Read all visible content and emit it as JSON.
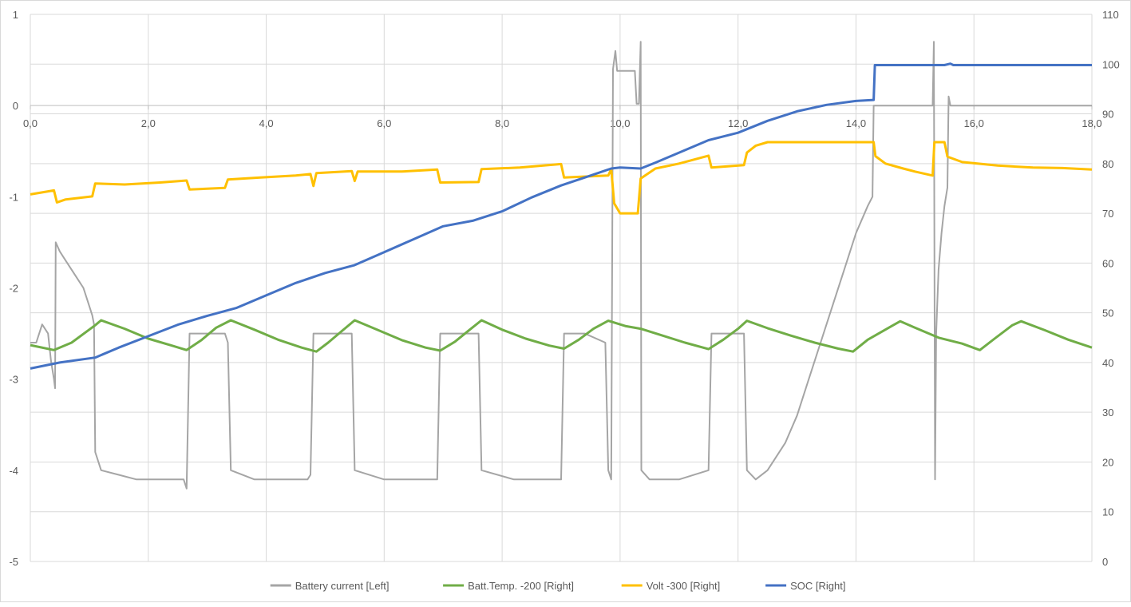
{
  "chart_data": {
    "type": "line",
    "title": "",
    "x_axis": {
      "range": [
        0,
        18
      ],
      "tick_values": [
        0,
        2,
        4,
        6,
        8,
        10,
        12,
        14,
        16,
        18
      ],
      "tick_labels": [
        "0,0",
        "2,0",
        "4,0",
        "6,0",
        "8,0",
        "10,0",
        "12,0",
        "14,0",
        "16,0",
        "18,0"
      ],
      "position": "crosses left axis at 0"
    },
    "left_axis": {
      "range": [
        -5,
        1
      ],
      "ticks": [
        1,
        0,
        -1,
        -2,
        -3,
        -4,
        -5
      ],
      "tick_labels": [
        "1",
        "0",
        "-1",
        "-2",
        "-3",
        "-4",
        "-5"
      ]
    },
    "right_axis": {
      "range": [
        0,
        110
      ],
      "ticks": [
        110,
        100,
        90,
        80,
        70,
        60,
        50,
        40,
        30,
        20,
        10,
        0
      ],
      "tick_labels": [
        "110",
        "100",
        "90",
        "80",
        "70",
        "60",
        "50",
        "40",
        "30",
        "20",
        "10",
        "0"
      ]
    },
    "grid": true,
    "legend_position": "bottom",
    "series": [
      {
        "name": "Battery current [Left]",
        "axis": "left",
        "color": "#a5a5a5",
        "points": [
          [
            0,
            -2.6
          ],
          [
            0.1,
            -2.6
          ],
          [
            0.2,
            -2.4
          ],
          [
            0.3,
            -2.5
          ],
          [
            0.35,
            -2.8
          ],
          [
            0.4,
            -3.0
          ],
          [
            0.42,
            -3.1
          ],
          [
            0.43,
            -1.5
          ],
          [
            0.5,
            -1.6
          ],
          [
            0.6,
            -1.7
          ],
          [
            0.7,
            -1.8
          ],
          [
            0.8,
            -1.9
          ],
          [
            0.9,
            -2.0
          ],
          [
            1.0,
            -2.2
          ],
          [
            1.05,
            -2.3
          ],
          [
            1.08,
            -2.4
          ],
          [
            1.1,
            -3.8
          ],
          [
            1.2,
            -4.0
          ],
          [
            1.5,
            -4.05
          ],
          [
            1.8,
            -4.1
          ],
          [
            2.2,
            -4.1
          ],
          [
            2.6,
            -4.1
          ],
          [
            2.65,
            -4.2
          ],
          [
            2.7,
            -2.5
          ],
          [
            3.0,
            -2.5
          ],
          [
            3.3,
            -2.5
          ],
          [
            3.35,
            -2.6
          ],
          [
            3.4,
            -4.0
          ],
          [
            3.8,
            -4.1
          ],
          [
            4.2,
            -4.1
          ],
          [
            4.7,
            -4.1
          ],
          [
            4.75,
            -4.05
          ],
          [
            4.8,
            -2.5
          ],
          [
            5.2,
            -2.5
          ],
          [
            5.45,
            -2.5
          ],
          [
            5.5,
            -4.0
          ],
          [
            6.0,
            -4.1
          ],
          [
            6.5,
            -4.1
          ],
          [
            6.9,
            -4.1
          ],
          [
            6.95,
            -2.5
          ],
          [
            7.3,
            -2.5
          ],
          [
            7.6,
            -2.5
          ],
          [
            7.65,
            -4.0
          ],
          [
            8.2,
            -4.1
          ],
          [
            8.7,
            -4.1
          ],
          [
            9.0,
            -4.1
          ],
          [
            9.05,
            -2.5
          ],
          [
            9.4,
            -2.5
          ],
          [
            9.75,
            -2.6
          ],
          [
            9.8,
            -4.0
          ],
          [
            9.85,
            -4.1
          ],
          [
            9.88,
            0.4
          ],
          [
            9.92,
            0.6
          ],
          [
            9.95,
            0.38
          ],
          [
            10.25,
            0.38
          ],
          [
            10.28,
            0.02
          ],
          [
            10.32,
            0.02
          ],
          [
            10.35,
            0.7
          ],
          [
            10.36,
            -4.0
          ],
          [
            10.5,
            -4.1
          ],
          [
            11.0,
            -4.1
          ],
          [
            11.5,
            -4.0
          ],
          [
            11.55,
            -2.5
          ],
          [
            11.9,
            -2.5
          ],
          [
            12.1,
            -2.5
          ],
          [
            12.15,
            -4.0
          ],
          [
            12.3,
            -4.1
          ],
          [
            12.5,
            -4.0
          ],
          [
            12.8,
            -3.7
          ],
          [
            13.0,
            -3.4
          ],
          [
            13.2,
            -3.0
          ],
          [
            13.4,
            -2.6
          ],
          [
            13.6,
            -2.2
          ],
          [
            13.8,
            -1.8
          ],
          [
            14.0,
            -1.4
          ],
          [
            14.2,
            -1.1
          ],
          [
            14.28,
            -1.0
          ],
          [
            14.3,
            0.0
          ],
          [
            15.3,
            0.0
          ],
          [
            15.32,
            0.7
          ],
          [
            15.34,
            -4.1
          ],
          [
            15.36,
            -2.5
          ],
          [
            15.4,
            -1.8
          ],
          [
            15.45,
            -1.4
          ],
          [
            15.5,
            -1.1
          ],
          [
            15.55,
            -0.9
          ],
          [
            15.57,
            0.1
          ],
          [
            15.6,
            0.0
          ],
          [
            18,
            0.0
          ]
        ]
      },
      {
        "name": "Batt.Temp. -200 [Right]",
        "axis": "right",
        "color": "#70ad47",
        "points": [
          [
            0,
            43.5
          ],
          [
            0.4,
            42.5
          ],
          [
            0.7,
            44
          ],
          [
            1.1,
            47.5
          ],
          [
            1.2,
            48.5
          ],
          [
            1.6,
            46.8
          ],
          [
            2.0,
            44.8
          ],
          [
            2.4,
            43.4
          ],
          [
            2.65,
            42.5
          ],
          [
            2.9,
            44.5
          ],
          [
            3.15,
            47
          ],
          [
            3.4,
            48.5
          ],
          [
            3.8,
            46.6
          ],
          [
            4.2,
            44.6
          ],
          [
            4.6,
            43
          ],
          [
            4.85,
            42.2
          ],
          [
            5.05,
            44
          ],
          [
            5.3,
            46.5
          ],
          [
            5.5,
            48.5
          ],
          [
            5.9,
            46.5
          ],
          [
            6.3,
            44.5
          ],
          [
            6.7,
            43
          ],
          [
            6.95,
            42.4
          ],
          [
            7.2,
            44.2
          ],
          [
            7.45,
            46.6
          ],
          [
            7.65,
            48.5
          ],
          [
            8.0,
            46.6
          ],
          [
            8.4,
            44.8
          ],
          [
            8.8,
            43.4
          ],
          [
            9.05,
            42.8
          ],
          [
            9.3,
            44.6
          ],
          [
            9.55,
            46.8
          ],
          [
            9.8,
            48.4
          ],
          [
            10.1,
            47.3
          ],
          [
            10.35,
            46.8
          ],
          [
            10.7,
            45.5
          ],
          [
            11.1,
            44
          ],
          [
            11.5,
            42.7
          ],
          [
            11.75,
            44.6
          ],
          [
            12.0,
            46.8
          ],
          [
            12.15,
            48.4
          ],
          [
            12.5,
            46.9
          ],
          [
            12.9,
            45.4
          ],
          [
            13.3,
            44
          ],
          [
            13.7,
            42.8
          ],
          [
            13.95,
            42.2
          ],
          [
            14.2,
            44.6
          ],
          [
            14.6,
            47.3
          ],
          [
            14.75,
            48.3
          ],
          [
            15.0,
            47.0
          ],
          [
            15.4,
            45
          ],
          [
            15.8,
            43.8
          ],
          [
            16.1,
            42.5
          ],
          [
            16.35,
            44.8
          ],
          [
            16.65,
            47.5
          ],
          [
            16.8,
            48.3
          ],
          [
            17.2,
            46.5
          ],
          [
            17.6,
            44.6
          ],
          [
            18.0,
            43
          ]
        ]
      },
      {
        "name": "Volt -300 [Right]",
        "axis": "right",
        "color": "#ffc000",
        "points": [
          [
            0,
            73.8
          ],
          [
            0.4,
            74.6
          ],
          [
            0.45,
            72.2
          ],
          [
            0.6,
            72.8
          ],
          [
            1.05,
            73.4
          ],
          [
            1.1,
            76
          ],
          [
            1.6,
            75.8
          ],
          [
            2.2,
            76.2
          ],
          [
            2.65,
            76.6
          ],
          [
            2.7,
            74.8
          ],
          [
            3.3,
            75.1
          ],
          [
            3.35,
            76.8
          ],
          [
            3.9,
            77.2
          ],
          [
            4.5,
            77.6
          ],
          [
            4.75,
            77.9
          ],
          [
            4.8,
            75.5
          ],
          [
            4.85,
            78.1
          ],
          [
            5.45,
            78.5
          ],
          [
            5.5,
            76.5
          ],
          [
            5.55,
            78.4
          ],
          [
            6.3,
            78.4
          ],
          [
            6.9,
            78.8
          ],
          [
            6.95,
            76.2
          ],
          [
            7.6,
            76.3
          ],
          [
            7.65,
            78.9
          ],
          [
            8.3,
            79.2
          ],
          [
            9.0,
            79.9
          ],
          [
            9.05,
            77.2
          ],
          [
            9.8,
            77.6
          ],
          [
            9.85,
            78.9
          ],
          [
            9.9,
            72
          ],
          [
            10.0,
            70
          ],
          [
            10.3,
            70
          ],
          [
            10.35,
            77
          ],
          [
            10.6,
            79
          ],
          [
            11.0,
            80
          ],
          [
            11.5,
            81.6
          ],
          [
            11.55,
            79.2
          ],
          [
            12.1,
            79.7
          ],
          [
            12.15,
            82.2
          ],
          [
            12.3,
            83.6
          ],
          [
            12.5,
            84.3
          ],
          [
            14.3,
            84.3
          ],
          [
            14.33,
            81.5
          ],
          [
            14.5,
            80
          ],
          [
            14.8,
            79
          ],
          [
            15.0,
            78.4
          ],
          [
            15.3,
            77.6
          ],
          [
            15.33,
            84.3
          ],
          [
            15.5,
            84.3
          ],
          [
            15.55,
            81.4
          ],
          [
            15.8,
            80.3
          ],
          [
            16.4,
            79.6
          ],
          [
            17.0,
            79.2
          ],
          [
            17.5,
            79.1
          ],
          [
            18,
            78.8
          ]
        ]
      },
      {
        "name": "SOC [Right]",
        "axis": "right",
        "color": "#4472c4",
        "points": [
          [
            0,
            38.8
          ],
          [
            0.5,
            40
          ],
          [
            1.1,
            41
          ],
          [
            1.5,
            43
          ],
          [
            2.0,
            45.3
          ],
          [
            2.5,
            47.6
          ],
          [
            3.0,
            49.4
          ],
          [
            3.5,
            51
          ],
          [
            4.0,
            53.5
          ],
          [
            4.5,
            56
          ],
          [
            5.0,
            58
          ],
          [
            5.5,
            59.6
          ],
          [
            6.0,
            62.2
          ],
          [
            6.5,
            64.8
          ],
          [
            7.0,
            67.4
          ],
          [
            7.5,
            68.5
          ],
          [
            8.0,
            70.4
          ],
          [
            8.5,
            73.2
          ],
          [
            9.0,
            75.6
          ],
          [
            9.5,
            77.6
          ],
          [
            9.85,
            79
          ],
          [
            10.0,
            79.2
          ],
          [
            10.35,
            79
          ],
          [
            10.6,
            80.2
          ],
          [
            11.0,
            82.2
          ],
          [
            11.5,
            84.7
          ],
          [
            12.0,
            86.2
          ],
          [
            12.5,
            88.6
          ],
          [
            13.0,
            90.5
          ],
          [
            13.5,
            91.8
          ],
          [
            14.0,
            92.6
          ],
          [
            14.3,
            92.8
          ],
          [
            14.32,
            99.8
          ],
          [
            15.5,
            99.8
          ],
          [
            15.6,
            100.1
          ],
          [
            15.65,
            99.8
          ],
          [
            18,
            99.8
          ]
        ]
      }
    ]
  }
}
